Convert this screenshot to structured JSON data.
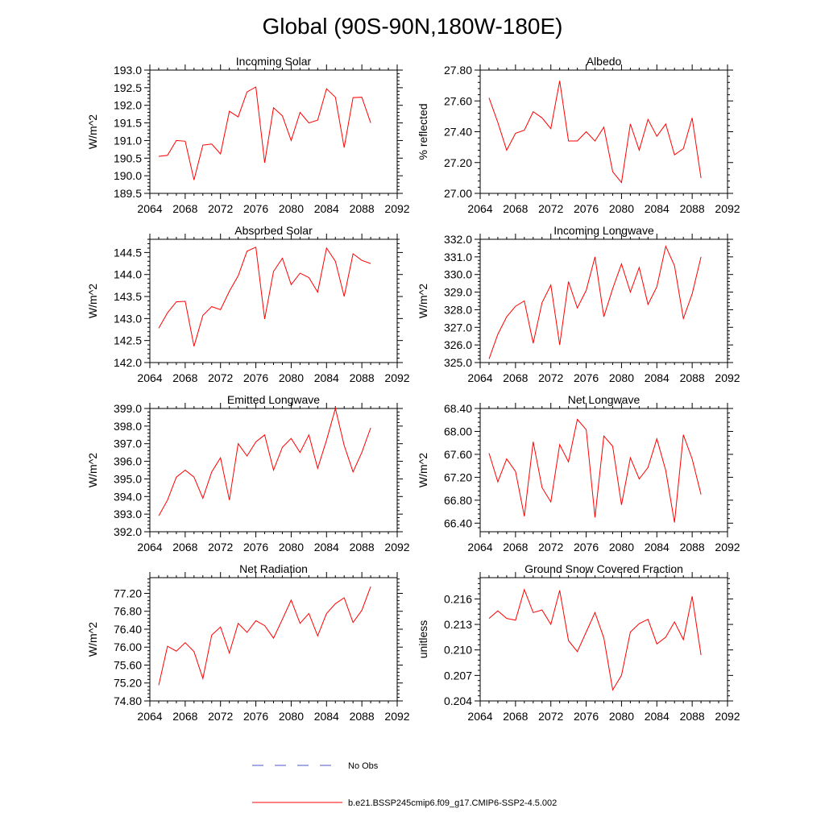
{
  "title": "Global (90S-90N,180W-180E)",
  "chart_data": [
    {
      "type": "line",
      "title": "Incoming Solar",
      "ylabel": "W/m^2",
      "xlim": [
        2064,
        2092
      ],
      "ylim": [
        189.5,
        193.0
      ],
      "xticks": [
        "2064",
        "2068",
        "2072",
        "2076",
        "2080",
        "2084",
        "2088",
        "2092"
      ],
      "yticks": [
        "189.5",
        "190.0",
        "190.5",
        "191.0",
        "191.5",
        "192.0",
        "192.5",
        "193.0"
      ],
      "x": [
        2065,
        2066,
        2067,
        2068,
        2069,
        2070,
        2071,
        2072,
        2073,
        2074,
        2075,
        2076,
        2077,
        2078,
        2079,
        2080,
        2081,
        2082,
        2083,
        2084,
        2085,
        2086,
        2087,
        2088,
        2089
      ],
      "series": [
        {
          "name": "b.e21.BSSP245cmip6.f09_g17.CMIP6-SSP2-4.5.002",
          "values": [
            190.55,
            190.58,
            191.0,
            190.98,
            189.88,
            190.87,
            190.9,
            190.62,
            191.83,
            191.67,
            192.38,
            192.52,
            190.37,
            191.93,
            191.7,
            191.0,
            191.8,
            191.5,
            191.58,
            192.47,
            192.23,
            190.8,
            192.22,
            192.23,
            191.5
          ]
        }
      ]
    },
    {
      "type": "line",
      "title": "Albedo",
      "ylabel": "% reflected",
      "xlim": [
        2064,
        2092
      ],
      "ylim": [
        27.0,
        27.8
      ],
      "xticks": [
        "2064",
        "2068",
        "2072",
        "2076",
        "2080",
        "2084",
        "2088",
        "2092"
      ],
      "yticks": [
        "27.00",
        "27.20",
        "27.40",
        "27.60",
        "27.80"
      ],
      "x": [
        2065,
        2066,
        2067,
        2068,
        2069,
        2070,
        2071,
        2072,
        2073,
        2074,
        2075,
        2076,
        2077,
        2078,
        2079,
        2080,
        2081,
        2082,
        2083,
        2084,
        2085,
        2086,
        2087,
        2088,
        2089
      ],
      "series": [
        {
          "name": "b.e21.BSSP245cmip6.f09_g17.CMIP6-SSP2-4.5.002",
          "values": [
            27.62,
            27.46,
            27.28,
            27.39,
            27.41,
            27.53,
            27.49,
            27.42,
            27.73,
            27.34,
            27.34,
            27.4,
            27.34,
            27.43,
            27.14,
            27.07,
            27.45,
            27.28,
            27.48,
            27.37,
            27.45,
            27.25,
            27.29,
            27.49,
            27.1
          ]
        }
      ]
    },
    {
      "type": "line",
      "title": "Absorbed Solar",
      "ylabel": "W/m^2",
      "xlim": [
        2064,
        2092
      ],
      "ylim": [
        142.0,
        144.8
      ],
      "xticks": [
        "2064",
        "2068",
        "2072",
        "2076",
        "2080",
        "2084",
        "2088",
        "2092"
      ],
      "yticks": [
        "142.0",
        "142.5",
        "143.0",
        "143.5",
        "144.0",
        "144.5"
      ],
      "x": [
        2065,
        2066,
        2067,
        2068,
        2069,
        2070,
        2071,
        2072,
        2073,
        2074,
        2075,
        2076,
        2077,
        2078,
        2079,
        2080,
        2081,
        2082,
        2083,
        2084,
        2085,
        2086,
        2087,
        2088,
        2089
      ],
      "series": [
        {
          "name": "b.e21.BSSP245cmip6.f09_g17.CMIP6-SSP2-4.5.002",
          "values": [
            142.78,
            143.13,
            143.38,
            143.39,
            142.37,
            143.07,
            143.27,
            143.2,
            143.62,
            143.97,
            144.53,
            144.62,
            142.99,
            144.07,
            144.37,
            143.77,
            144.03,
            143.93,
            143.6,
            144.6,
            144.3,
            143.5,
            144.47,
            144.32,
            144.25
          ]
        }
      ]
    },
    {
      "type": "line",
      "title": "Incoming Longwave",
      "ylabel": "W/m^2",
      "xlim": [
        2064,
        2092
      ],
      "ylim": [
        325.0,
        332.0
      ],
      "xticks": [
        "2064",
        "2068",
        "2072",
        "2076",
        "2080",
        "2084",
        "2088",
        "2092"
      ],
      "yticks": [
        "325.0",
        "326.0",
        "327.0",
        "328.0",
        "329.0",
        "330.0",
        "331.0",
        "332.0"
      ],
      "x": [
        2065,
        2066,
        2067,
        2068,
        2069,
        2070,
        2071,
        2072,
        2073,
        2074,
        2075,
        2076,
        2077,
        2078,
        2079,
        2080,
        2081,
        2082,
        2083,
        2084,
        2085,
        2086,
        2087,
        2088,
        2089
      ],
      "series": [
        {
          "name": "b.e21.BSSP245cmip6.f09_g17.CMIP6-SSP2-4.5.002",
          "values": [
            325.2,
            326.6,
            327.6,
            328.2,
            328.5,
            326.1,
            328.4,
            329.4,
            326.0,
            329.6,
            328.1,
            329.1,
            331.0,
            327.6,
            329.2,
            330.6,
            329.0,
            330.4,
            328.3,
            329.3,
            331.6,
            330.5,
            327.5,
            328.9,
            331.0
          ]
        }
      ]
    },
    {
      "type": "line",
      "title": "Emitted Longwave",
      "ylabel": "W/m^2",
      "xlim": [
        2064,
        2092
      ],
      "ylim": [
        392.0,
        399.0
      ],
      "xticks": [
        "2064",
        "2068",
        "2072",
        "2076",
        "2080",
        "2084",
        "2088",
        "2092"
      ],
      "yticks": [
        "392.0",
        "393.0",
        "394.0",
        "395.0",
        "396.0",
        "397.0",
        "398.0",
        "399.0"
      ],
      "x": [
        2065,
        2066,
        2067,
        2068,
        2069,
        2070,
        2071,
        2072,
        2073,
        2074,
        2075,
        2076,
        2077,
        2078,
        2079,
        2080,
        2081,
        2082,
        2083,
        2084,
        2085,
        2086,
        2087,
        2088,
        2089
      ],
      "series": [
        {
          "name": "b.e21.BSSP245cmip6.f09_g17.CMIP6-SSP2-4.5.002",
          "values": [
            392.9,
            393.8,
            395.1,
            395.5,
            395.1,
            393.9,
            395.4,
            396.2,
            393.8,
            397.0,
            396.3,
            397.1,
            397.5,
            395.5,
            396.8,
            397.3,
            396.5,
            397.5,
            395.6,
            397.2,
            399.0,
            396.9,
            395.4,
            396.5,
            397.9
          ]
        }
      ]
    },
    {
      "type": "line",
      "title": "Net Longwave",
      "ylabel": "W/m^2",
      "xlim": [
        2064,
        2092
      ],
      "ylim": [
        66.25,
        68.4
      ],
      "xticks": [
        "2064",
        "2068",
        "2072",
        "2076",
        "2080",
        "2084",
        "2088",
        "2092"
      ],
      "yticks": [
        "66.40",
        "66.80",
        "67.20",
        "67.60",
        "68.00",
        "68.40"
      ],
      "x": [
        2065,
        2066,
        2067,
        2068,
        2069,
        2070,
        2071,
        2072,
        2073,
        2074,
        2075,
        2076,
        2077,
        2078,
        2079,
        2080,
        2081,
        2082,
        2083,
        2084,
        2085,
        2086,
        2087,
        2088,
        2089
      ],
      "series": [
        {
          "name": "b.e21.BSSP245cmip6.f09_g17.CMIP6-SSP2-4.5.002",
          "values": [
            67.62,
            67.12,
            67.52,
            67.3,
            66.52,
            67.82,
            67.02,
            66.77,
            67.77,
            67.47,
            68.21,
            68.03,
            66.5,
            67.92,
            67.74,
            66.72,
            67.54,
            67.17,
            67.37,
            67.87,
            67.32,
            66.41,
            67.94,
            67.52,
            66.9
          ]
        }
      ]
    },
    {
      "type": "line",
      "title": "Net Radiation",
      "ylabel": "W/m^2",
      "xlim": [
        2064,
        2092
      ],
      "ylim": [
        74.8,
        77.55
      ],
      "xticks": [
        "2064",
        "2068",
        "2072",
        "2076",
        "2080",
        "2084",
        "2088",
        "2092"
      ],
      "yticks": [
        "74.80",
        "75.20",
        "75.60",
        "76.00",
        "76.40",
        "76.80",
        "77.20"
      ],
      "x": [
        2065,
        2066,
        2067,
        2068,
        2069,
        2070,
        2071,
        2072,
        2073,
        2074,
        2075,
        2076,
        2077,
        2078,
        2079,
        2080,
        2081,
        2082,
        2083,
        2084,
        2085,
        2086,
        2087,
        2088,
        2089
      ],
      "series": [
        {
          "name": "b.e21.BSSP245cmip6.f09_g17.CMIP6-SSP2-4.5.002",
          "values": [
            75.15,
            76.02,
            75.91,
            76.1,
            75.9,
            75.3,
            76.27,
            76.45,
            75.87,
            76.53,
            76.33,
            76.59,
            76.48,
            76.2,
            76.62,
            77.05,
            76.53,
            76.75,
            76.25,
            76.75,
            76.97,
            77.1,
            76.55,
            76.82,
            77.35
          ]
        }
      ]
    },
    {
      "type": "line",
      "title": "Ground Snow Covered Fraction",
      "ylabel": "unitless",
      "xlim": [
        2064,
        2092
      ],
      "ylim": [
        0.204,
        0.2185
      ],
      "xticks": [
        "2064",
        "2068",
        "2072",
        "2076",
        "2080",
        "2084",
        "2088",
        "2092"
      ],
      "yticks": [
        "0.204",
        "0.207",
        "0.210",
        "0.213",
        "0.216"
      ],
      "x": [
        2065,
        2066,
        2067,
        2068,
        2069,
        2070,
        2071,
        2072,
        2073,
        2074,
        2075,
        2076,
        2077,
        2078,
        2079,
        2080,
        2081,
        2082,
        2083,
        2084,
        2085,
        2086,
        2087,
        2088,
        2089
      ],
      "series": [
        {
          "name": "b.e21.BSSP245cmip6.f09_g17.CMIP6-SSP2-4.5.002",
          "values": [
            0.2137,
            0.2146,
            0.2137,
            0.2135,
            0.2171,
            0.2144,
            0.2147,
            0.213,
            0.217,
            0.2111,
            0.2098,
            0.2121,
            0.2144,
            0.2114,
            0.2053,
            0.207,
            0.2121,
            0.2131,
            0.2136,
            0.2107,
            0.2115,
            0.2133,
            0.2112,
            0.2163,
            0.2094
          ]
        }
      ]
    }
  ],
  "legend": [
    {
      "label": "No Obs",
      "style": "dashed",
      "color": "#4b54c8"
    },
    {
      "label": "b.e21.BSSP245cmip6.f09_g17.CMIP6-SSP2-4.5.002",
      "style": "solid",
      "color": "#ff0000"
    }
  ]
}
